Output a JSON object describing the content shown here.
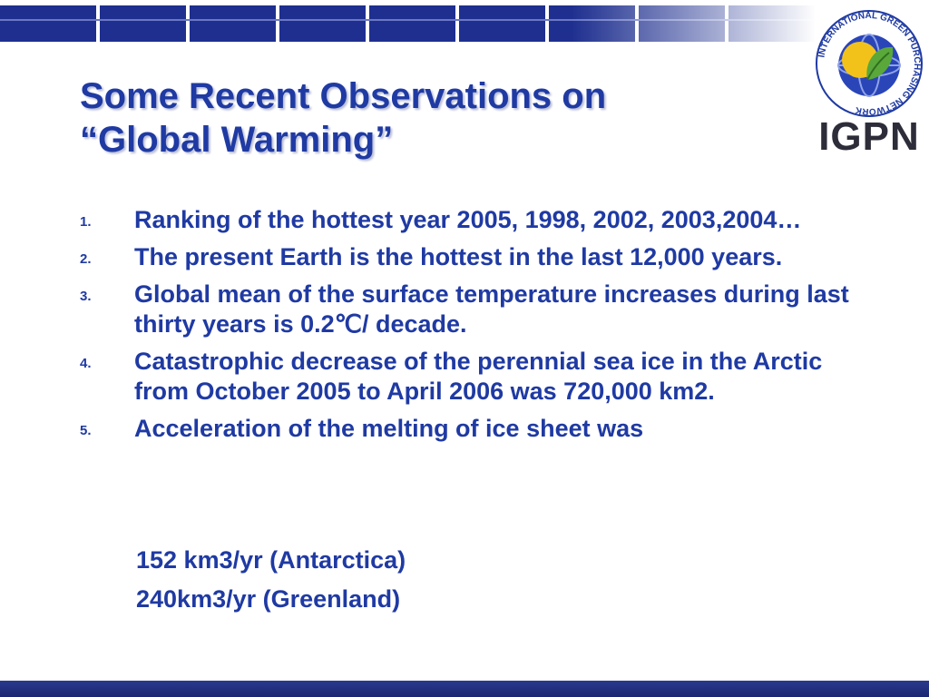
{
  "slide": {
    "title_line1": "Some Recent Observations on",
    "title_line2": "“Global Warming”",
    "items": [
      {
        "number": "1.",
        "text": "Ranking of the hottest year 2005, 1998, 2002, 2003,2004…"
      },
      {
        "number": "2.",
        "text": "The present Earth is the hottest in the last 12,000 years."
      },
      {
        "number": "3.",
        "text": "Global mean of the surface temperature increases during last thirty years is 0.2℃/ decade."
      },
      {
        "number": "4.",
        "text": "Catastrophic decrease of the perennial sea ice in the Arctic from October 2005 to April 2006 was 720,000 km2."
      },
      {
        "number": "5.",
        "text": "Acceleration of the melting of ice sheet was"
      }
    ],
    "sub_items": [
      "152 km3/yr (Antarctica)",
      "240km3/yr (Greenland)"
    ]
  },
  "logo": {
    "ring_text": "INTERNATIONAL GREEN PURCHASING NETWORK",
    "abbr": "IGPN",
    "colors": {
      "globe": "#2a45b8",
      "sun": "#f2c21a",
      "leaf": "#5aa83a",
      "ring": "#1f3aa3"
    }
  },
  "theme": {
    "title_color": "#1f3aa3",
    "bar_color": "#1e2f8f"
  }
}
